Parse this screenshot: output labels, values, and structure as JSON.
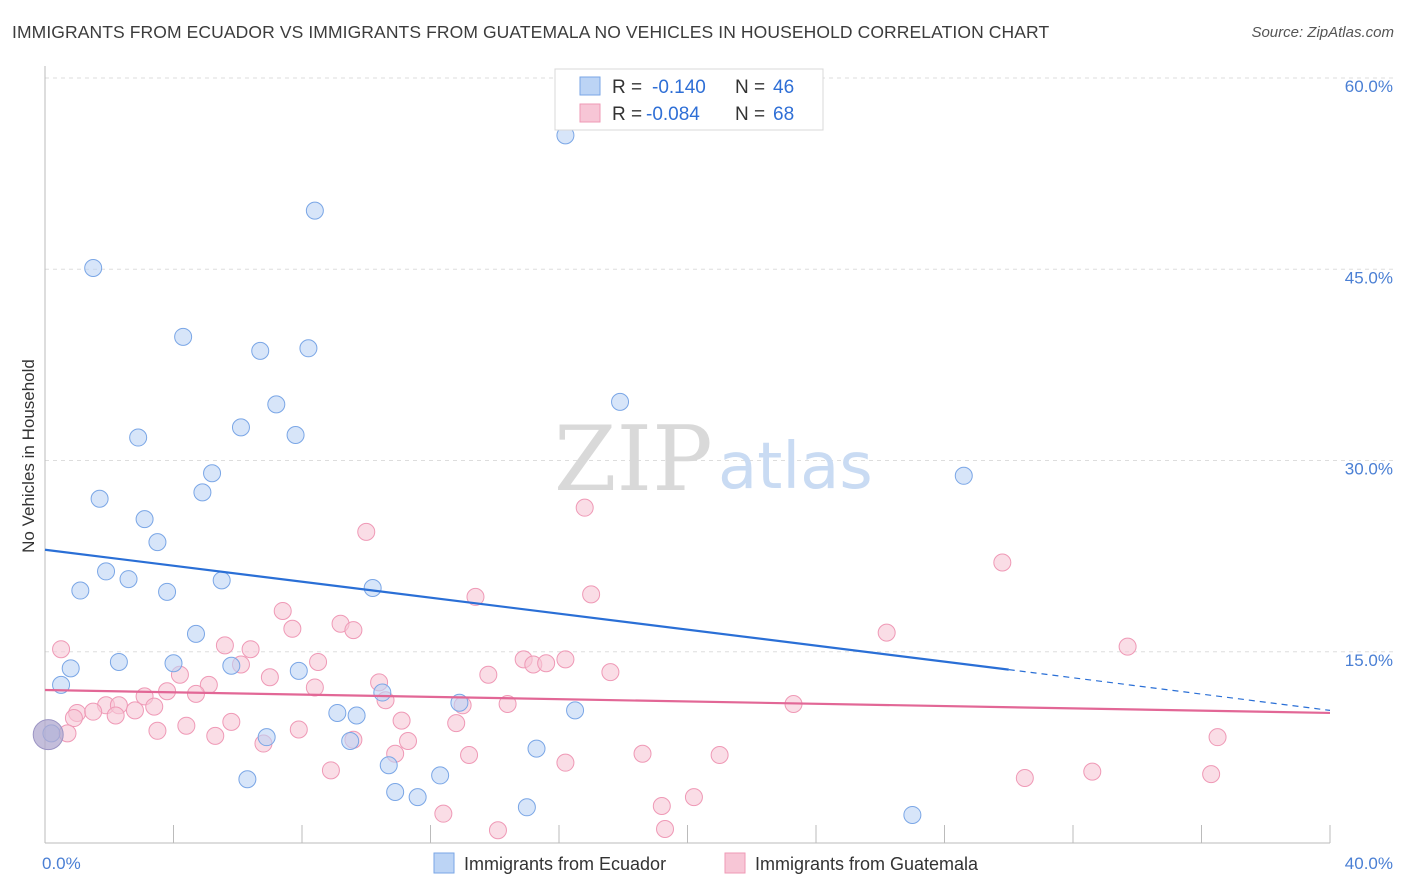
{
  "title": "IMMIGRANTS FROM ECUADOR VS IMMIGRANTS FROM GUATEMALA NO VEHICLES IN HOUSEHOLD CORRELATION CHART",
  "source": "Source: ZipAtlas.com",
  "watermark": {
    "zip": "ZIP",
    "atlas": "atlas"
  },
  "legend": {
    "r_label": "R =",
    "n_label": "N =",
    "series": [
      {
        "name": "Immigrants from Ecuador",
        "r": "-0.140",
        "n": "46"
      },
      {
        "name": "Immigrants from Guatemala",
        "r": "-0.084",
        "n": "68"
      }
    ]
  },
  "colors": {
    "ecuador_fill": "#bcd4f5",
    "ecuador_stroke": "#7aa6e6",
    "ecuador_line": "#2a6fd6",
    "guatemala_fill": "#f7c6d6",
    "guatemala_stroke": "#ef99b6",
    "guatemala_line": "#e26796"
  },
  "chart_data": {
    "type": "scatter",
    "title": "IMMIGRANTS FROM ECUADOR VS IMMIGRANTS FROM GUATEMALA NO VEHICLES IN HOUSEHOLD CORRELATION CHART",
    "xlabel": "",
    "ylabel": "No Vehicles in Household",
    "xlim": [
      0,
      40
    ],
    "ylim": [
      0,
      60
    ],
    "x_tick_labels": [
      {
        "value": 0,
        "label": "0.0%"
      },
      {
        "value": 40,
        "label": "40.0%"
      }
    ],
    "y_tick_labels": [
      {
        "value": 15,
        "label": "15.0%"
      },
      {
        "value": 30,
        "label": "30.0%"
      },
      {
        "value": 45,
        "label": "45.0%"
      },
      {
        "value": 60,
        "label": "60.0%"
      }
    ],
    "grid": true,
    "series": [
      {
        "name": "Immigrants from Ecuador",
        "r": -0.14,
        "n": 46,
        "trend": {
          "x_start": 0,
          "y_start": 23.0,
          "x_solid_end": 30,
          "y_solid_end": 13.6,
          "x_end": 40,
          "y_end": 10.4
        },
        "points": [
          [
            16.2,
            55.5
          ],
          [
            8.4,
            49.6
          ],
          [
            1.5,
            45.1
          ],
          [
            4.3,
            39.7
          ],
          [
            6.7,
            38.6
          ],
          [
            8.2,
            38.8
          ],
          [
            7.2,
            34.4
          ],
          [
            17.9,
            34.6
          ],
          [
            6.1,
            32.6
          ],
          [
            7.8,
            32.0
          ],
          [
            2.9,
            31.8
          ],
          [
            5.2,
            29.0
          ],
          [
            28.6,
            28.8
          ],
          [
            4.9,
            27.5
          ],
          [
            1.7,
            27.0
          ],
          [
            3.1,
            25.4
          ],
          [
            3.5,
            23.6
          ],
          [
            1.9,
            21.3
          ],
          [
            2.6,
            20.7
          ],
          [
            5.5,
            20.6
          ],
          [
            1.1,
            19.8
          ],
          [
            3.8,
            19.7
          ],
          [
            10.2,
            20.0
          ],
          [
            4.7,
            16.4
          ],
          [
            2.3,
            14.2
          ],
          [
            4.0,
            14.1
          ],
          [
            5.8,
            13.9
          ],
          [
            0.8,
            13.7
          ],
          [
            7.9,
            13.5
          ],
          [
            0.5,
            12.4
          ],
          [
            10.5,
            11.8
          ],
          [
            12.9,
            11.0
          ],
          [
            9.1,
            10.2
          ],
          [
            9.7,
            10.0
          ],
          [
            16.5,
            10.4
          ],
          [
            6.9,
            8.3
          ],
          [
            9.5,
            8.0
          ],
          [
            0.2,
            8.6
          ],
          [
            10.7,
            6.1
          ],
          [
            15.3,
            7.4
          ],
          [
            12.3,
            5.3
          ],
          [
            6.3,
            5.0
          ],
          [
            10.9,
            4.0
          ],
          [
            11.6,
            3.6
          ],
          [
            15.0,
            2.8
          ],
          [
            27.0,
            2.2
          ]
        ]
      },
      {
        "name": "Immigrants from Guatemala",
        "r": -0.084,
        "n": 68,
        "trend": {
          "x_start": 0,
          "y_start": 12.0,
          "x_end": 40,
          "y_end": 10.2
        },
        "points": [
          [
            16.8,
            26.3
          ],
          [
            10.0,
            24.4
          ],
          [
            29.8,
            22.0
          ],
          [
            13.4,
            19.3
          ],
          [
            17.0,
            19.5
          ],
          [
            7.4,
            18.2
          ],
          [
            9.2,
            17.2
          ],
          [
            7.7,
            16.8
          ],
          [
            9.6,
            16.7
          ],
          [
            26.2,
            16.5
          ],
          [
            5.6,
            15.5
          ],
          [
            6.4,
            15.2
          ],
          [
            33.7,
            15.4
          ],
          [
            0.5,
            15.2
          ],
          [
            14.9,
            14.4
          ],
          [
            16.2,
            14.4
          ],
          [
            8.5,
            14.2
          ],
          [
            15.2,
            14.0
          ],
          [
            15.6,
            14.1
          ],
          [
            6.1,
            14.0
          ],
          [
            4.2,
            13.2
          ],
          [
            7.0,
            13.0
          ],
          [
            13.8,
            13.2
          ],
          [
            17.6,
            13.4
          ],
          [
            10.4,
            12.6
          ],
          [
            5.1,
            12.4
          ],
          [
            8.4,
            12.2
          ],
          [
            3.8,
            11.9
          ],
          [
            4.7,
            11.7
          ],
          [
            3.1,
            11.5
          ],
          [
            10.6,
            11.2
          ],
          [
            1.9,
            10.8
          ],
          [
            2.3,
            10.8
          ],
          [
            3.4,
            10.7
          ],
          [
            14.4,
            10.9
          ],
          [
            13.0,
            10.8
          ],
          [
            23.3,
            10.9
          ],
          [
            1.0,
            10.2
          ],
          [
            1.5,
            10.3
          ],
          [
            2.8,
            10.4
          ],
          [
            2.2,
            10.0
          ],
          [
            0.9,
            9.8
          ],
          [
            11.1,
            9.6
          ],
          [
            5.8,
            9.5
          ],
          [
            4.4,
            9.2
          ],
          [
            12.8,
            9.4
          ],
          [
            3.5,
            8.8
          ],
          [
            7.9,
            8.9
          ],
          [
            0.7,
            8.6
          ],
          [
            5.3,
            8.4
          ],
          [
            9.6,
            8.1
          ],
          [
            11.3,
            8.0
          ],
          [
            6.8,
            7.8
          ],
          [
            36.5,
            8.3
          ],
          [
            10.9,
            7.0
          ],
          [
            13.2,
            6.9
          ],
          [
            18.6,
            7.0
          ],
          [
            21.0,
            6.9
          ],
          [
            16.2,
            6.3
          ],
          [
            8.9,
            5.7
          ],
          [
            32.6,
            5.6
          ],
          [
            36.3,
            5.4
          ],
          [
            30.5,
            5.1
          ],
          [
            20.2,
            3.6
          ],
          [
            19.2,
            2.9
          ],
          [
            12.4,
            2.3
          ],
          [
            19.3,
            1.1
          ],
          [
            14.1,
            1.0
          ]
        ]
      }
    ]
  }
}
